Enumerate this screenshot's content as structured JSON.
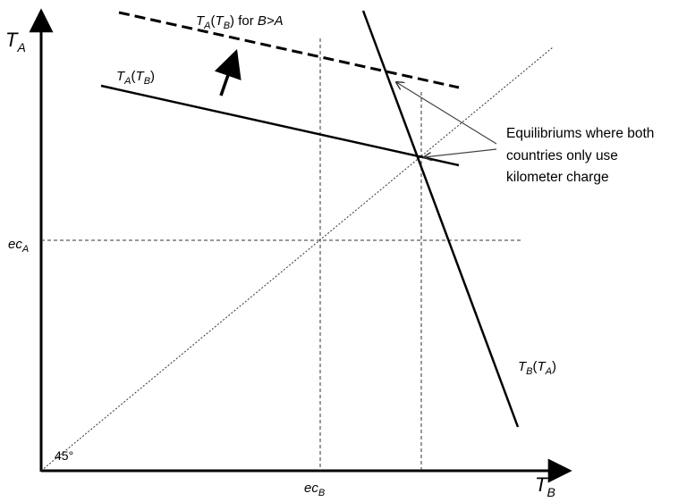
{
  "axes": {
    "y_label": "T",
    "y_label_sub": "A",
    "x_label": "T",
    "x_label_sub": "B",
    "y_tick_main": "ec",
    "y_tick_sub": "A",
    "x_tick_main": "ec",
    "x_tick_sub": "B",
    "origin_angle": "45°"
  },
  "curves": {
    "ta_of_tb_pre_a": "T",
    "ta_of_tb_pre_sub_a": "A",
    "ta_of_tb_paren_open": "(",
    "ta_of_tb_pre_b": "T",
    "ta_of_tb_pre_sub_b": "B",
    "ta_of_tb_paren_close": ")",
    "dashed_a": "T",
    "dashed_sub_a": "A",
    "dashed_paren_open": "(",
    "dashed_b": "T",
    "dashed_sub_b": "B",
    "dashed_suffix": ") for ",
    "dashed_cond": "B>A",
    "tb_of_ta_a": "T",
    "tb_of_ta_sub_a": "B",
    "tb_of_ta_paren_open": "(",
    "tb_of_ta_b": "T",
    "tb_of_ta_sub_b": "A",
    "tb_of_ta_paren_close": ")"
  },
  "annotation": {
    "line1": "Equilibriums where both",
    "line2": "countries only use",
    "line3": "kilometer charge"
  }
}
